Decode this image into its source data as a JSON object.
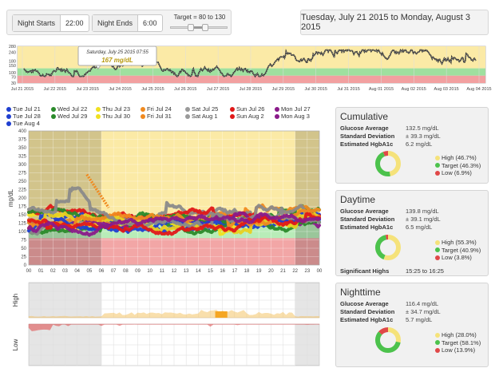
{
  "controls": {
    "night_starts_label": "Night Starts",
    "night_starts_value": "22:00",
    "night_ends_label": "Night Ends",
    "night_ends_value": "6:00",
    "target_label": "Target = 80 to 130",
    "target_low": 80,
    "target_high": 130
  },
  "date_range": "Tuesday, July 21 2015 to Monday, August 3 2015",
  "overview": {
    "y_ticks": [
      "280",
      "240",
      "180",
      "150",
      "100",
      "70",
      "30"
    ],
    "x_ticks": [
      "Jul 21 2015",
      "Jul 22 2015",
      "Jul 23 2015",
      "Jul 24 2015",
      "Jul 25 2015",
      "Jul 26 2015",
      "Jul 27 2015",
      "Jul 28 2015",
      "Jul 29 2015",
      "Jul 30 2015",
      "Jul 31 2015",
      "Aug 01 2015",
      "Aug 02 2015",
      "Aug 03 2015",
      "Aug 04 2015"
    ],
    "tooltip_date": "Saturday, July 25 2015 07:55",
    "tooltip_value": "167 mg/dL"
  },
  "legend": [
    {
      "label": "Tue Jul 21",
      "color": "#1f3fd0"
    },
    {
      "label": "Wed Jul 22",
      "color": "#2a8a2a"
    },
    {
      "label": "Thu Jul 23",
      "color": "#f0e020"
    },
    {
      "label": "Fri Jul 24",
      "color": "#f08a20"
    },
    {
      "label": "Sat Jul 25",
      "color": "#9a9a9a"
    },
    {
      "label": "Sun Jul 26",
      "color": "#e01818"
    },
    {
      "label": "Mon Jul 27",
      "color": "#8a1a8a"
    },
    {
      "label": "Tue Jul 28",
      "color": "#1f3fd0"
    },
    {
      "label": "Wed Jul 29",
      "color": "#2a8a2a"
    },
    {
      "label": "Thu Jul 30",
      "color": "#f0e020"
    },
    {
      "label": "Fri Jul 31",
      "color": "#f08a20"
    },
    {
      "label": "Sat Aug 1",
      "color": "#9a9a9a"
    },
    {
      "label": "Sun Aug 2",
      "color": "#e01818"
    },
    {
      "label": "Mon Aug 3",
      "color": "#8a1a8a"
    },
    {
      "label": "Tue Aug 4",
      "color": "#1f3fd0"
    }
  ],
  "main_chart": {
    "ylabel": "mg/dL",
    "y_ticks": [
      "400",
      "375",
      "350",
      "325",
      "300",
      "275",
      "250",
      "225",
      "200",
      "175",
      "150",
      "125",
      "100",
      "75",
      "50",
      "25",
      "0"
    ],
    "x_ticks": [
      "00",
      "01",
      "02",
      "03",
      "04",
      "05",
      "06",
      "07",
      "08",
      "09",
      "10",
      "11",
      "12",
      "13",
      "14",
      "15",
      "16",
      "17",
      "18",
      "19",
      "20",
      "21",
      "22",
      "23",
      "00"
    ]
  },
  "high_chart": {
    "label": "High"
  },
  "low_chart": {
    "label": "Low"
  },
  "panels": {
    "cumulative": {
      "title": "Cumulative",
      "avg_label": "Glucose Average",
      "avg": "132.5 mg/dL",
      "sd_label": "Standard Deviation",
      "sd": "± 39.3 mg/dL",
      "a1c_label": "Estimated HgbA1c",
      "a1c": "6.2 mg/dL",
      "high": "High (46.7%)",
      "target": "Target (46.3%)",
      "low": "Low (6.9%)",
      "pct": [
        46.7,
        46.3,
        6.9
      ]
    },
    "daytime": {
      "title": "Daytime",
      "avg_label": "Glucose Average",
      "avg": "139.8 mg/dL",
      "sd_label": "Standard Deviation",
      "sd": "± 39.1 mg/dL",
      "a1c_label": "Estimated HgbA1c",
      "a1c": "6.5 mg/dL",
      "high": "High (55.3%)",
      "target": "Target (40.9%)",
      "low": "Low (3.8%)",
      "pct": [
        55.3,
        40.9,
        3.8
      ],
      "sig_label": "Significant Highs",
      "sig_value": "15:25 to 16:25"
    },
    "nighttime": {
      "title": "Nighttime",
      "avg_label": "Glucose Average",
      "avg": "116.4 mg/dL",
      "sd_label": "Standard Deviation",
      "sd": "± 34.7 mg/dL",
      "a1c_label": "Estimated HgbA1c",
      "a1c": "5.7 mg/dL",
      "high": "High (28.0%)",
      "target": "Target (58.1%)",
      "low": "Low (13.9%)",
      "pct": [
        28.0,
        58.1,
        13.9
      ]
    }
  },
  "colors": {
    "high": "#f5e27a",
    "target": "#4cc24c",
    "low": "#e04848"
  }
}
